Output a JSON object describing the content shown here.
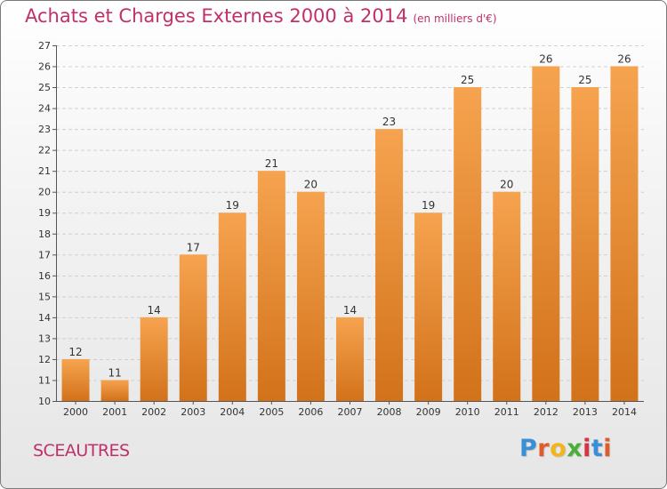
{
  "header": {
    "title": "Achats et Charges Externes 2000 à 2014",
    "subtitle": "(en milliers d'€)"
  },
  "footer": {
    "commune": "SCEAUTRES",
    "logo_text": "Proxiti"
  },
  "colors": {
    "title": "#c0306a",
    "bar_top": "#f6a34f",
    "bar_bottom": "#d2721a",
    "grid": "#d0d0d0"
  },
  "chart_data": {
    "type": "bar",
    "title": "Achats et Charges Externes 2000 à 2014",
    "subtitle": "(en milliers d'€)",
    "xlabel": "",
    "ylabel": "",
    "ylim": [
      10,
      27
    ],
    "yticks": [
      10,
      11,
      12,
      13,
      14,
      15,
      16,
      17,
      18,
      19,
      20,
      21,
      22,
      23,
      24,
      25,
      26,
      27
    ],
    "categories": [
      "2000",
      "2001",
      "2002",
      "2003",
      "2004",
      "2005",
      "2006",
      "2007",
      "2008",
      "2009",
      "2010",
      "2011",
      "2012",
      "2013",
      "2014"
    ],
    "values": [
      12,
      11,
      14,
      17,
      19,
      21,
      20,
      14,
      23,
      19,
      25,
      20,
      26,
      25,
      26
    ],
    "grid": true,
    "data_labels": true
  }
}
